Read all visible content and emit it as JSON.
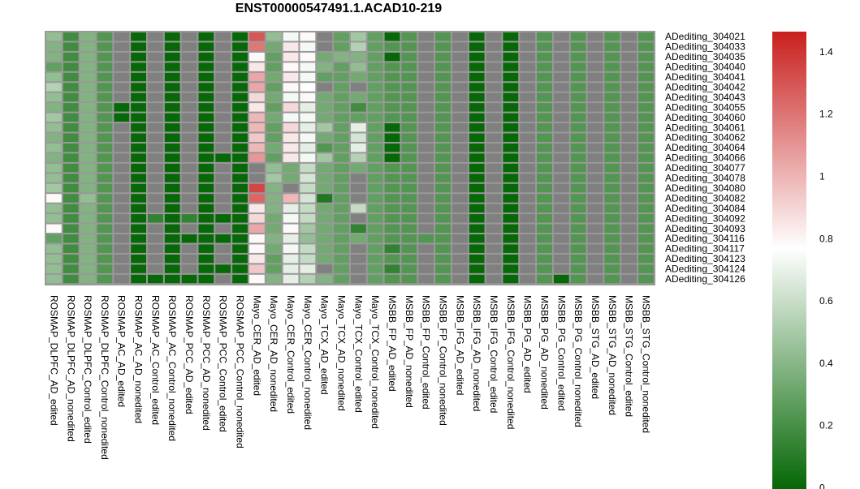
{
  "chart_data": {
    "type": "heatmap",
    "title": "ENST00000547491.1.ACAD10-219",
    "columns": [
      "ROSMAP_DLPFC_AD_edited",
      "ROSMAP_DLPFC_AD_nonedited",
      "ROSMAP_DLPFC_Control_edited",
      "ROSMAP_DLPFC_Control_nonedited",
      "ROSMAP_AC_AD_edited",
      "ROSMAP_AC_AD_nonedited",
      "ROSMAP_AC_Control_edited",
      "ROSMAP_AC_Control_nonedited",
      "ROSMAP_PCC_AD_edited",
      "ROSMAP_PCC_AD_nonedited",
      "ROSMAP_PCC_Control_edited",
      "ROSMAP_PCC_Control_nonedited",
      "Mayo_CER_AD_edited",
      "Mayo_CER_AD_nonedited",
      "Mayo_CER_Control_edited",
      "Mayo_CER_Control_nonedited",
      "Mayo_TCX_AD_edited",
      "Mayo_TCX_AD_nonedited",
      "Mayo_TCX_Control_edited",
      "Mayo_TCX_Control_nonedited",
      "MSBB_FP_AD_edited",
      "MSBB_FP_AD_nonedited",
      "MSBB_FP_Control_edited",
      "MSBB_FP_Control_nonedited",
      "MSBB_IFG_AD_edited",
      "MSBB_IFG_AD_nonedited",
      "MSBB_IFG_Control_edited",
      "MSBB_IFG_Control_nonedited",
      "MSBB_PG_AD_edited",
      "MSBB_PG_AD_nonedited",
      "MSBB_PG_Control_edited",
      "MSBB_PG_Control_nonedited",
      "MSBB_STG_AD_edited",
      "MSBB_STG_AD_nonedited",
      "MSBB_STG_Control_edited",
      "MSBB_STG_Control_nonedited"
    ],
    "rows": [
      "ADediting_304021",
      "ADediting_304033",
      "ADediting_304035",
      "ADediting_304040",
      "ADediting_304041",
      "ADediting_304042",
      "ADediting_304043",
      "ADediting_304055",
      "ADediting_304060",
      "ADediting_304061",
      "ADediting_304062",
      "ADediting_304064",
      "ADediting_304066",
      "ADediting_304077",
      "ADediting_304078",
      "ADediting_304080",
      "ADediting_304082",
      "ADediting_304084",
      "ADediting_304092",
      "ADediting_304093",
      "ADediting_304116",
      "ADediting_304117",
      "ADediting_304123",
      "ADediting_304124",
      "ADediting_304126"
    ],
    "values": [
      [
        0.45,
        0.2,
        0.4,
        0.25,
        null,
        0.02,
        null,
        0.02,
        null,
        0.02,
        null,
        0.02,
        1.3,
        0.45,
        0.75,
        0.8,
        null,
        0.3,
        0.5,
        0.3,
        0.02,
        0.25,
        null,
        0.25,
        null,
        0.02,
        null,
        0.02,
        null,
        0.25,
        null,
        0.25,
        null,
        0.25,
        null,
        0.25
      ],
      [
        0.4,
        0.2,
        0.4,
        0.25,
        null,
        0.02,
        null,
        0.02,
        null,
        0.02,
        null,
        0.02,
        1.2,
        0.35,
        0.85,
        0.75,
        null,
        0.3,
        0.55,
        0.3,
        0.25,
        0.25,
        null,
        0.25,
        null,
        0.02,
        null,
        0.02,
        null,
        0.25,
        null,
        0.25,
        null,
        0.25,
        null,
        0.25
      ],
      [
        0.4,
        0.2,
        0.4,
        0.25,
        null,
        0.02,
        null,
        0.02,
        null,
        0.02,
        null,
        0.02,
        0.8,
        0.3,
        0.85,
        0.8,
        0.35,
        0.4,
        0.4,
        0.3,
        0.02,
        0.25,
        null,
        0.25,
        null,
        0.02,
        null,
        0.02,
        null,
        0.25,
        null,
        0.25,
        null,
        0.25,
        null,
        0.25
      ],
      [
        0.3,
        0.2,
        0.4,
        0.25,
        null,
        0.02,
        null,
        0.02,
        null,
        0.02,
        null,
        0.02,
        0.85,
        0.3,
        0.8,
        0.75,
        0.4,
        0.3,
        0.45,
        0.3,
        0.25,
        0.25,
        null,
        0.25,
        null,
        0.02,
        null,
        0.02,
        null,
        0.25,
        null,
        0.25,
        null,
        0.25,
        null,
        0.25
      ],
      [
        0.45,
        0.2,
        0.4,
        0.25,
        null,
        0.02,
        null,
        0.02,
        null,
        0.02,
        null,
        0.02,
        1.05,
        0.35,
        0.85,
        0.75,
        0.3,
        0.3,
        0.35,
        0.3,
        0.25,
        0.25,
        null,
        0.25,
        null,
        0.02,
        null,
        0.02,
        null,
        0.25,
        null,
        0.25,
        null,
        0.25,
        null,
        0.25
      ],
      [
        0.55,
        0.2,
        0.4,
        0.25,
        null,
        0.02,
        null,
        0.02,
        null,
        0.02,
        null,
        0.02,
        1.05,
        0.3,
        0.8,
        0.78,
        null,
        0.3,
        null,
        0.3,
        0.25,
        0.25,
        null,
        0.25,
        null,
        0.02,
        null,
        0.02,
        null,
        0.25,
        null,
        0.25,
        null,
        0.25,
        null,
        0.25
      ],
      [
        0.45,
        0.2,
        0.4,
        0.25,
        null,
        0.02,
        null,
        0.02,
        null,
        0.02,
        null,
        0.02,
        0.9,
        0.35,
        0.75,
        0.8,
        0.35,
        0.3,
        0.35,
        0.3,
        0.25,
        0.25,
        null,
        0.25,
        null,
        0.02,
        null,
        0.02,
        null,
        0.25,
        null,
        0.25,
        null,
        0.25,
        null,
        0.25
      ],
      [
        0.4,
        0.2,
        0.4,
        0.25,
        0.02,
        0.02,
        null,
        0.02,
        null,
        0.02,
        null,
        0.02,
        0.85,
        0.3,
        0.9,
        0.7,
        0.35,
        0.3,
        0.2,
        0.3,
        0.25,
        0.25,
        null,
        0.25,
        null,
        0.02,
        null,
        0.02,
        null,
        0.25,
        null,
        0.25,
        null,
        0.25,
        null,
        0.25
      ],
      [
        0.5,
        0.2,
        0.4,
        0.25,
        0.02,
        0.02,
        null,
        0.02,
        null,
        0.02,
        null,
        0.02,
        1.0,
        0.35,
        0.75,
        0.75,
        0.35,
        0.3,
        0.3,
        0.3,
        0.25,
        0.25,
        null,
        0.25,
        null,
        0.02,
        null,
        0.02,
        null,
        0.25,
        null,
        0.25,
        null,
        0.25,
        null,
        0.25
      ],
      [
        0.45,
        0.2,
        0.4,
        0.25,
        null,
        0.02,
        null,
        0.02,
        null,
        0.02,
        null,
        0.02,
        1.0,
        0.3,
        0.9,
        0.7,
        0.5,
        0.3,
        0.7,
        0.3,
        0.02,
        0.25,
        null,
        0.25,
        null,
        0.02,
        null,
        0.02,
        null,
        0.25,
        null,
        0.25,
        null,
        0.25,
        null,
        0.25
      ],
      [
        0.4,
        0.2,
        0.4,
        0.25,
        null,
        0.02,
        null,
        0.02,
        null,
        0.02,
        null,
        0.02,
        0.95,
        0.3,
        0.85,
        0.75,
        0.35,
        0.3,
        0.65,
        0.3,
        0.02,
        0.25,
        null,
        0.25,
        null,
        0.02,
        null,
        0.02,
        null,
        0.25,
        null,
        0.25,
        null,
        0.25,
        null,
        0.25
      ],
      [
        0.45,
        0.2,
        0.4,
        0.25,
        null,
        0.02,
        null,
        0.02,
        null,
        0.02,
        null,
        0.02,
        1.0,
        0.35,
        0.85,
        0.7,
        0.25,
        0.3,
        0.7,
        0.3,
        0.02,
        0.25,
        null,
        0.25,
        null,
        0.02,
        null,
        0.02,
        null,
        0.25,
        null,
        0.25,
        null,
        0.25,
        null,
        0.25
      ],
      [
        0.4,
        0.2,
        0.4,
        0.25,
        null,
        0.02,
        null,
        0.02,
        null,
        0.02,
        0.02,
        0.02,
        1.1,
        0.3,
        0.85,
        0.75,
        0.5,
        0.3,
        0.55,
        0.3,
        0.02,
        0.25,
        null,
        0.25,
        null,
        0.02,
        null,
        0.02,
        null,
        0.25,
        null,
        0.25,
        null,
        0.25,
        null,
        0.25
      ],
      [
        0.45,
        0.2,
        0.4,
        0.25,
        null,
        0.02,
        null,
        0.02,
        null,
        0.02,
        null,
        0.02,
        null,
        0.45,
        0.35,
        0.6,
        0.35,
        0.3,
        0.35,
        0.3,
        0.25,
        0.25,
        null,
        0.25,
        null,
        0.02,
        null,
        0.02,
        null,
        0.25,
        null,
        0.25,
        null,
        0.25,
        null,
        0.25
      ],
      [
        0.45,
        0.2,
        0.4,
        0.25,
        null,
        0.02,
        null,
        0.02,
        null,
        0.02,
        null,
        0.02,
        null,
        0.5,
        0.35,
        0.65,
        0.35,
        0.3,
        null,
        0.3,
        0.25,
        0.25,
        null,
        0.25,
        null,
        0.02,
        null,
        0.02,
        null,
        0.25,
        null,
        0.25,
        null,
        0.25,
        null,
        0.25
      ],
      [
        0.5,
        0.2,
        0.4,
        0.25,
        null,
        0.02,
        null,
        0.02,
        null,
        0.02,
        null,
        0.02,
        1.35,
        0.4,
        null,
        0.6,
        0.35,
        0.3,
        null,
        0.3,
        0.25,
        0.25,
        null,
        0.25,
        null,
        0.02,
        null,
        0.02,
        null,
        0.25,
        null,
        0.25,
        null,
        0.25,
        null,
        0.25
      ],
      [
        0.8,
        0.2,
        0.45,
        0.25,
        null,
        0.02,
        null,
        0.02,
        null,
        0.02,
        null,
        0.02,
        1.25,
        0.4,
        1.0,
        0.65,
        0.1,
        0.3,
        null,
        0.3,
        0.25,
        0.25,
        null,
        0.25,
        null,
        0.02,
        null,
        0.02,
        null,
        0.25,
        null,
        0.25,
        null,
        0.25,
        null,
        0.25
      ],
      [
        0.45,
        0.2,
        0.4,
        0.25,
        null,
        0.02,
        null,
        0.02,
        null,
        0.02,
        null,
        0.02,
        0.85,
        0.4,
        0.7,
        0.6,
        0.35,
        0.3,
        0.6,
        0.3,
        0.25,
        0.25,
        null,
        0.25,
        null,
        0.02,
        null,
        0.02,
        null,
        0.25,
        null,
        0.25,
        null,
        0.25,
        null,
        0.25
      ],
      [
        0.45,
        0.2,
        0.4,
        0.25,
        null,
        0.02,
        0.15,
        0.02,
        0.15,
        0.02,
        0.02,
        0.02,
        0.9,
        0.35,
        0.75,
        0.6,
        0.35,
        0.3,
        null,
        0.3,
        0.25,
        0.25,
        null,
        0.25,
        null,
        0.02,
        null,
        0.02,
        null,
        0.25,
        null,
        0.25,
        null,
        0.25,
        null,
        0.25
      ],
      [
        0.8,
        0.2,
        0.4,
        0.25,
        null,
        0.02,
        null,
        0.02,
        null,
        0.02,
        null,
        0.02,
        1.05,
        0.35,
        0.8,
        0.5,
        0.35,
        0.3,
        0.15,
        0.3,
        0.25,
        0.25,
        null,
        0.25,
        null,
        0.02,
        null,
        0.02,
        null,
        0.25,
        null,
        0.25,
        null,
        0.25,
        null,
        0.25
      ],
      [
        0.3,
        0.2,
        0.4,
        0.25,
        null,
        0.02,
        null,
        0.02,
        0.02,
        0.02,
        0.02,
        0.02,
        0.8,
        0.4,
        0.7,
        0.45,
        0.35,
        0.3,
        0.35,
        0.3,
        0.25,
        0.25,
        0.25,
        0.25,
        null,
        0.02,
        null,
        0.02,
        null,
        0.25,
        null,
        0.25,
        null,
        0.25,
        null,
        0.25
      ],
      [
        0.45,
        0.2,
        0.4,
        0.25,
        null,
        0.02,
        null,
        0.02,
        null,
        0.02,
        null,
        0.02,
        0.8,
        0.35,
        0.75,
        0.6,
        0.35,
        0.3,
        null,
        0.3,
        0.15,
        0.25,
        null,
        0.25,
        null,
        0.02,
        null,
        0.02,
        null,
        0.25,
        null,
        0.25,
        null,
        0.25,
        null,
        0.25
      ],
      [
        0.45,
        0.2,
        0.4,
        0.25,
        null,
        0.02,
        null,
        0.02,
        null,
        0.02,
        null,
        0.02,
        0.85,
        0.3,
        0.7,
        0.6,
        0.35,
        0.3,
        null,
        0.3,
        0.25,
        0.25,
        null,
        0.25,
        null,
        0.02,
        null,
        0.02,
        null,
        0.25,
        null,
        0.25,
        null,
        0.25,
        null,
        0.25
      ],
      [
        0.45,
        0.2,
        0.4,
        0.25,
        null,
        0.02,
        null,
        0.02,
        null,
        0.02,
        0.02,
        0.02,
        0.95,
        0.3,
        0.7,
        0.7,
        null,
        0.3,
        null,
        0.3,
        0.15,
        0.25,
        null,
        0.25,
        null,
        0.02,
        null,
        0.02,
        null,
        0.25,
        null,
        0.25,
        null,
        0.25,
        null,
        0.25
      ],
      [
        0.45,
        0.2,
        0.4,
        0.25,
        null,
        0.02,
        0.02,
        0.02,
        0.02,
        0.02,
        null,
        0.02,
        0.8,
        0.4,
        0.7,
        0.55,
        0.4,
        0.3,
        null,
        0.3,
        0.25,
        0.25,
        null,
        0.25,
        null,
        0.02,
        null,
        0.02,
        null,
        0.25,
        0.02,
        0.25,
        null,
        0.25,
        null,
        0.25
      ]
    ],
    "missing_color": "#808080",
    "color_scale": {
      "min": 0,
      "max": 1.47,
      "stops": [
        {
          "value": 0,
          "color": "#006400"
        },
        {
          "value": 0.78,
          "color": "#ffffff"
        },
        {
          "value": 1.47,
          "color": "#c8201e"
        }
      ]
    },
    "legend_ticks": [
      {
        "value": 0,
        "label": "0"
      },
      {
        "value": 0.2,
        "label": "0.2"
      },
      {
        "value": 0.4,
        "label": "0.4"
      },
      {
        "value": 0.6,
        "label": "0.6"
      },
      {
        "value": 0.8,
        "label": "0.8"
      },
      {
        "value": 1.0,
        "label": "1"
      },
      {
        "value": 1.2,
        "label": "1.2"
      },
      {
        "value": 1.4,
        "label": "1.4"
      }
    ],
    "legend_position": "right"
  }
}
